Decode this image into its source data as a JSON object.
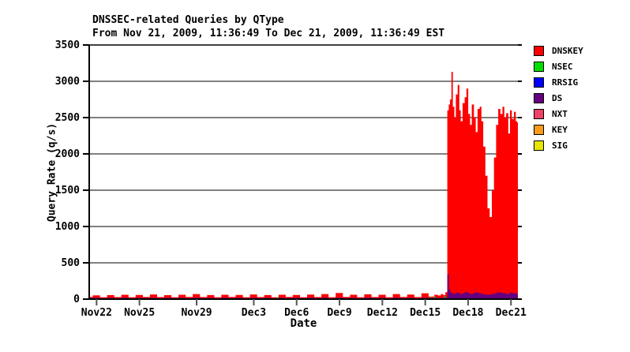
{
  "colors": {
    "background": "#ffffff",
    "axis": "#000000",
    "grid": "#000000",
    "text": "#000000"
  },
  "chart_data": {
    "type": "area",
    "stacking": "areas overpainted in legend order (each series filled from 0 to value)",
    "title": "DNSSEC-related Queries by QType",
    "subtitle": "From Nov 21, 2009, 11:36:49 To Dec 21, 2009, 11:36:49 EST",
    "xlabel": "Date",
    "ylabel": "Query Rate (q/s)",
    "ylim": [
      0,
      3500
    ],
    "yticks": [
      0,
      500,
      1000,
      1500,
      2000,
      2500,
      3000,
      3500
    ],
    "grid": "horizontal line at every 500 q/s",
    "x_domain_days": [
      0,
      30
    ],
    "x_start": "Nov 21, 2009 11:36:49 EST",
    "x_end": "Dec 21, 2009 11:36:49 EST",
    "xticks": [
      {
        "day": 0.516,
        "label": "Nov22"
      },
      {
        "day": 3.516,
        "label": "Nov25"
      },
      {
        "day": 7.516,
        "label": "Nov29"
      },
      {
        "day": 11.516,
        "label": "Dec3"
      },
      {
        "day": 14.516,
        "label": "Dec6"
      },
      {
        "day": 17.516,
        "label": "Dec9"
      },
      {
        "day": 20.516,
        "label": "Dec12"
      },
      {
        "day": 23.516,
        "label": "Dec15"
      },
      {
        "day": 26.516,
        "label": "Dec18"
      },
      {
        "day": 29.516,
        "label": "Dec21"
      }
    ],
    "legend_position": "right",
    "legend": [
      {
        "label": "DNSKEY",
        "color": "#ff0000"
      },
      {
        "label": "NSEC",
        "color": "#00e000"
      },
      {
        "label": "RRSIG",
        "color": "#0000ff"
      },
      {
        "label": "DS",
        "color": "#660080"
      },
      {
        "label": "NXT",
        "color": "#ee4266"
      },
      {
        "label": "KEY",
        "color": "#fa9a1b"
      },
      {
        "label": "SIG",
        "color": "#e6e600"
      }
    ],
    "series": [
      {
        "name": "DNSKEY",
        "color": "#ff0000",
        "points": [
          [
            0,
            30
          ],
          [
            0.5,
            52
          ],
          [
            1,
            26
          ],
          [
            1.5,
            55
          ],
          [
            2,
            28
          ],
          [
            2.5,
            60
          ],
          [
            3,
            26
          ],
          [
            3.5,
            56
          ],
          [
            4,
            30
          ],
          [
            4.5,
            64
          ],
          [
            5,
            28
          ],
          [
            5.5,
            54
          ],
          [
            6,
            26
          ],
          [
            6.5,
            60
          ],
          [
            7,
            30
          ],
          [
            7.5,
            70
          ],
          [
            8,
            28
          ],
          [
            8.5,
            55
          ],
          [
            9,
            26
          ],
          [
            9.5,
            60
          ],
          [
            10,
            30
          ],
          [
            10.5,
            56
          ],
          [
            11,
            26
          ],
          [
            11.5,
            64
          ],
          [
            12,
            28
          ],
          [
            12.5,
            55
          ],
          [
            13,
            26
          ],
          [
            13.5,
            60
          ],
          [
            14,
            30
          ],
          [
            14.5,
            56
          ],
          [
            15,
            26
          ],
          [
            15.5,
            62
          ],
          [
            16,
            28
          ],
          [
            16.5,
            70
          ],
          [
            17,
            26
          ],
          [
            17.5,
            85
          ],
          [
            18,
            30
          ],
          [
            18.5,
            60
          ],
          [
            19,
            26
          ],
          [
            19.5,
            66
          ],
          [
            20,
            28
          ],
          [
            20.5,
            60
          ],
          [
            21,
            26
          ],
          [
            21.5,
            70
          ],
          [
            22,
            30
          ],
          [
            22.5,
            62
          ],
          [
            23,
            28
          ],
          [
            23.5,
            80
          ],
          [
            24,
            35
          ],
          [
            24.3,
            60
          ],
          [
            24.5,
            50
          ],
          [
            24.7,
            70
          ],
          [
            24.85,
            55
          ],
          [
            25.0,
            95
          ],
          [
            25.12,
            2600
          ],
          [
            25.2,
            2680
          ],
          [
            25.3,
            2750
          ],
          [
            25.4,
            3130
          ],
          [
            25.5,
            2650
          ],
          [
            25.6,
            2500
          ],
          [
            25.72,
            2820
          ],
          [
            25.85,
            2950
          ],
          [
            25.95,
            2600
          ],
          [
            26.05,
            2450
          ],
          [
            26.2,
            2700
          ],
          [
            26.35,
            2780
          ],
          [
            26.45,
            2900
          ],
          [
            26.6,
            2550
          ],
          [
            26.7,
            2400
          ],
          [
            26.85,
            2680
          ],
          [
            27.0,
            2500
          ],
          [
            27.1,
            2300
          ],
          [
            27.25,
            2620
          ],
          [
            27.4,
            2650
          ],
          [
            27.5,
            2450
          ],
          [
            27.65,
            2100
          ],
          [
            27.8,
            1700
          ],
          [
            27.95,
            1250
          ],
          [
            28.1,
            1130
          ],
          [
            28.25,
            1500
          ],
          [
            28.4,
            1950
          ],
          [
            28.55,
            2400
          ],
          [
            28.7,
            2620
          ],
          [
            28.85,
            2550
          ],
          [
            29.0,
            2650
          ],
          [
            29.1,
            2500
          ],
          [
            29.25,
            2560
          ],
          [
            29.4,
            2280
          ],
          [
            29.5,
            2600
          ],
          [
            29.65,
            2480
          ],
          [
            29.8,
            2580
          ],
          [
            29.9,
            2450
          ],
          [
            30,
            2430
          ]
        ]
      },
      {
        "name": "NSEC",
        "color": "#00e000",
        "points": [
          [
            13.1,
            0
          ],
          [
            13.18,
            28
          ],
          [
            13.28,
            0
          ],
          [
            23.82,
            0
          ],
          [
            23.9,
            30
          ],
          [
            24.0,
            0
          ],
          [
            24.1,
            0
          ],
          [
            24.18,
            35
          ],
          [
            24.28,
            0
          ],
          [
            24.78,
            0
          ],
          [
            24.88,
            42
          ],
          [
            24.98,
            0
          ]
        ]
      },
      {
        "name": "RRSIG",
        "color": "#0000ff",
        "points": []
      },
      {
        "name": "DS",
        "color": "#660080",
        "points": [
          [
            0,
            16
          ],
          [
            0.5,
            18
          ],
          [
            1,
            14
          ],
          [
            1.5,
            17
          ],
          [
            2,
            15
          ],
          [
            2.5,
            18
          ],
          [
            3,
            14
          ],
          [
            3.5,
            17
          ],
          [
            4,
            15
          ],
          [
            4.5,
            18
          ],
          [
            5,
            14
          ],
          [
            5.5,
            17
          ],
          [
            6,
            15
          ],
          [
            6.5,
            18
          ],
          [
            7,
            14
          ],
          [
            7.5,
            18
          ],
          [
            8,
            15
          ],
          [
            8.5,
            17
          ],
          [
            9,
            14
          ],
          [
            9.5,
            18
          ],
          [
            10,
            15
          ],
          [
            10.5,
            17
          ],
          [
            11,
            14
          ],
          [
            11.5,
            18
          ],
          [
            12,
            15
          ],
          [
            12.5,
            17
          ],
          [
            13,
            14
          ],
          [
            13.5,
            18
          ],
          [
            14,
            15
          ],
          [
            14.5,
            17
          ],
          [
            15,
            14
          ],
          [
            15.5,
            18
          ],
          [
            16,
            15
          ],
          [
            16.5,
            18
          ],
          [
            17,
            14
          ],
          [
            17.5,
            20
          ],
          [
            18,
            15
          ],
          [
            18.5,
            17
          ],
          [
            19,
            14
          ],
          [
            19.5,
            18
          ],
          [
            20,
            15
          ],
          [
            20.5,
            17
          ],
          [
            21,
            14
          ],
          [
            21.5,
            18
          ],
          [
            22,
            15
          ],
          [
            22.5,
            17
          ],
          [
            23,
            15
          ],
          [
            23.5,
            20
          ],
          [
            24,
            16
          ],
          [
            24.5,
            17
          ],
          [
            24.85,
            18
          ],
          [
            25.0,
            22
          ],
          [
            25.12,
            340
          ],
          [
            25.22,
            130
          ],
          [
            25.3,
            95
          ],
          [
            25.45,
            80
          ],
          [
            25.6,
            75
          ],
          [
            25.75,
            90
          ],
          [
            25.9,
            85
          ],
          [
            26.05,
            70
          ],
          [
            26.2,
            80
          ],
          [
            26.35,
            100
          ],
          [
            26.5,
            95
          ],
          [
            26.65,
            75
          ],
          [
            26.8,
            70
          ],
          [
            26.95,
            85
          ],
          [
            27.1,
            95
          ],
          [
            27.25,
            85
          ],
          [
            27.4,
            80
          ],
          [
            27.55,
            70
          ],
          [
            27.7,
            65
          ],
          [
            27.85,
            62
          ],
          [
            28.0,
            60
          ],
          [
            28.15,
            65
          ],
          [
            28.3,
            72
          ],
          [
            28.45,
            80
          ],
          [
            28.6,
            90
          ],
          [
            28.75,
            95
          ],
          [
            28.9,
            82
          ],
          [
            29.05,
            85
          ],
          [
            29.2,
            75
          ],
          [
            29.35,
            70
          ],
          [
            29.5,
            92
          ],
          [
            29.65,
            85
          ],
          [
            29.8,
            78
          ],
          [
            29.9,
            80
          ],
          [
            30,
            72
          ]
        ]
      },
      {
        "name": "NXT",
        "color": "#ee4266",
        "points": []
      },
      {
        "name": "KEY",
        "color": "#fa9a1b",
        "points": []
      },
      {
        "name": "SIG",
        "color": "#e6e600",
        "points": []
      }
    ]
  }
}
